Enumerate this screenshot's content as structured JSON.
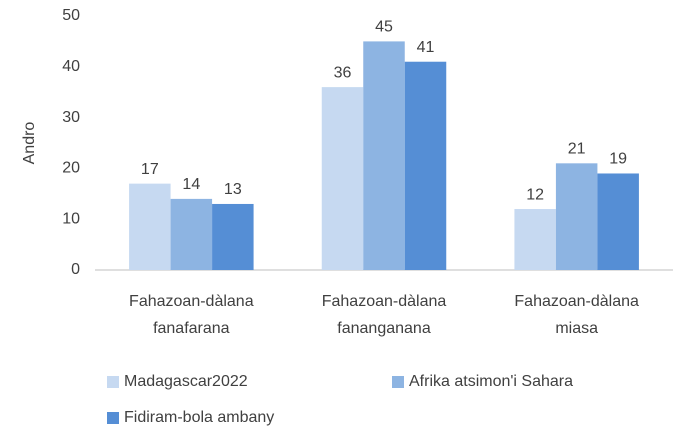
{
  "chart_data": {
    "type": "bar",
    "y_label": "Andro",
    "categories": [
      "Fahazoan-dàlana fanafarana",
      "Fahazoan-dàlana fananganana",
      "Fahazoan-dàlana miasa"
    ],
    "series": [
      {
        "name": "Madagascar2022",
        "color": "#c6d9f1",
        "values": [
          17,
          36,
          12
        ]
      },
      {
        "name": "Afrika atsimon'i Sahara",
        "color": "#8db4e2",
        "values": [
          14,
          45,
          21
        ]
      },
      {
        "name": "Fidiram-bola ambany",
        "color": "#558ed5",
        "values": [
          13,
          41,
          19
        ]
      }
    ],
    "ylim": [
      0,
      50
    ],
    "yticks": [
      0,
      10,
      20,
      30,
      40,
      50
    ],
    "grid": false,
    "legend": "bottom"
  }
}
